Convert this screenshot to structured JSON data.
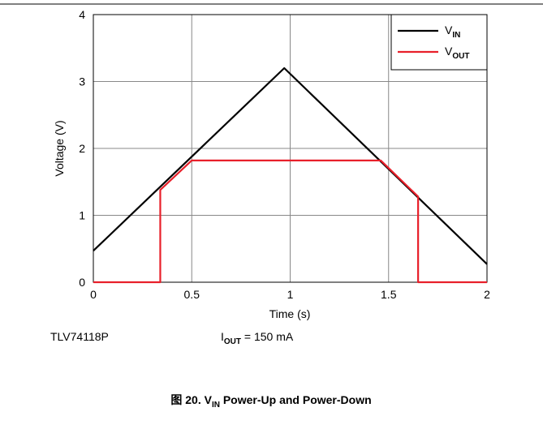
{
  "chart_data": {
    "type": "line",
    "xlabel": "Time (s)",
    "ylabel": "Voltage (V)",
    "xlim": [
      0,
      2
    ],
    "ylim": [
      0,
      4
    ],
    "xticks": [
      0,
      0.5,
      1,
      1.5,
      2
    ],
    "yticks": [
      0,
      1,
      2,
      3,
      4
    ],
    "grid": true,
    "legend": "upper right",
    "series": [
      {
        "name": "VIN",
        "color": "#000000",
        "x": [
          0,
          0.97,
          2
        ],
        "values": [
          0.47,
          3.2,
          0.27
        ]
      },
      {
        "name": "VOUT",
        "color": "#e8202a",
        "x": [
          0,
          0.34,
          0.34,
          0.5,
          1.46,
          1.65,
          1.65,
          2
        ],
        "values": [
          0,
          0,
          1.38,
          1.82,
          1.82,
          1.28,
          0,
          0
        ]
      }
    ],
    "annotations": [
      "TLV74118P",
      "IOUT = 150 mA"
    ],
    "caption": "图 20. VIN Power-Up and Power-Down"
  }
}
